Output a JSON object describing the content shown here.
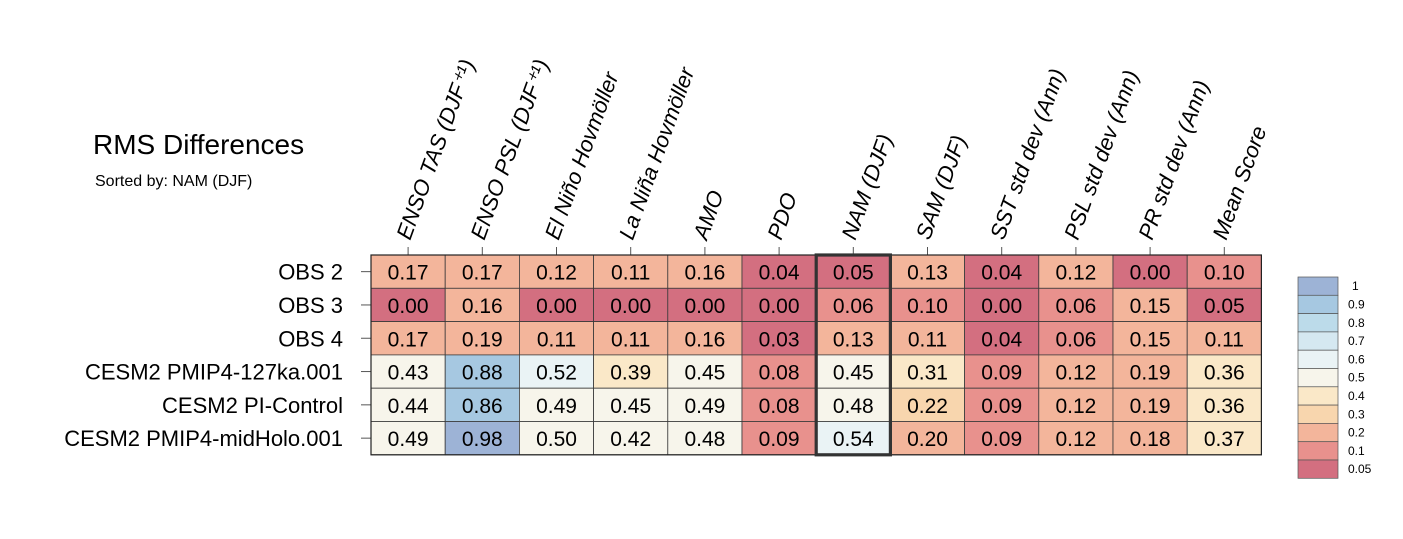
{
  "chart_data": {
    "type": "heatmap",
    "title": "RMS Differences",
    "subtitle": "Sorted by: NAM (DJF)",
    "highlighted_column": "NAM (DJF)",
    "columns": [
      "ENSO TAS (DJF⁺¹)",
      "ENSO PSL (DJF⁺¹)",
      "El Niño Hovmöller",
      "La Niña Hovmöller",
      "AMO",
      "PDO",
      "NAM (DJF)",
      "SAM (DJF)",
      "SST std dev (Ann)",
      "PSL std dev (Ann)",
      "PR std dev (Ann)",
      "Mean Score"
    ],
    "rows": [
      {
        "label": "OBS 2",
        "values": [
          0.17,
          0.17,
          0.12,
          0.11,
          0.16,
          0.04,
          0.05,
          0.13,
          0.04,
          0.12,
          0.0,
          0.1
        ],
        "text": [
          "0.17",
          "0.17",
          "0.12",
          "0.11",
          "0.16",
          "0.04",
          "0.05",
          "0.13",
          "0.04",
          "0.12",
          "0.00",
          "0.10"
        ]
      },
      {
        "label": "OBS 3",
        "values": [
          0.0,
          0.16,
          0.0,
          0.0,
          0.0,
          0.0,
          0.06,
          0.1,
          0.0,
          0.06,
          0.15,
          0.05
        ],
        "text": [
          "0.00",
          "0.16",
          "0.00",
          "0.00",
          "0.00",
          "0.00",
          "0.06",
          "0.10",
          "0.00",
          "0.06",
          "0.15",
          "0.05"
        ]
      },
      {
        "label": "OBS 4",
        "values": [
          0.17,
          0.19,
          0.11,
          0.11,
          0.16,
          0.03,
          0.13,
          0.11,
          0.04,
          0.06,
          0.15,
          0.11
        ],
        "text": [
          "0.17",
          "0.19",
          "0.11",
          "0.11",
          "0.16",
          "0.03",
          "0.13",
          "0.11",
          "0.04",
          "0.06",
          "0.15",
          "0.11"
        ]
      },
      {
        "label": "CESM2 PMIP4-127ka.001",
        "values": [
          0.43,
          0.88,
          0.52,
          0.39,
          0.45,
          0.08,
          0.45,
          0.31,
          0.09,
          0.12,
          0.19,
          0.36
        ],
        "text": [
          "0.43",
          "0.88",
          "0.52",
          "0.39",
          "0.45",
          "0.08",
          "0.45",
          "0.31",
          "0.09",
          "0.12",
          "0.19",
          "0.36"
        ]
      },
      {
        "label": "CESM2 PI-Control",
        "values": [
          0.44,
          0.86,
          0.49,
          0.45,
          0.49,
          0.08,
          0.48,
          0.22,
          0.09,
          0.12,
          0.19,
          0.36
        ],
        "text": [
          "0.44",
          "0.86",
          "0.49",
          "0.45",
          "0.49",
          "0.08",
          "0.48",
          "0.22",
          "0.09",
          "0.12",
          "0.19",
          "0.36"
        ]
      },
      {
        "label": "CESM2 PMIP4-midHolo.001",
        "values": [
          0.49,
          0.98,
          0.5,
          0.42,
          0.48,
          0.09,
          0.54,
          0.2,
          0.09,
          0.12,
          0.18,
          0.37
        ],
        "text": [
          "0.49",
          "0.98",
          "0.50",
          "0.42",
          "0.48",
          "0.09",
          "0.54",
          "0.20",
          "0.09",
          "0.12",
          "0.18",
          "0.37"
        ]
      }
    ],
    "legend": {
      "placement": "right",
      "levels": [
        1,
        0.9,
        0.8,
        0.7,
        0.6,
        0.5,
        0.4,
        0.3,
        0.2,
        0.1,
        0.05
      ],
      "labels": [
        "1",
        "0.9",
        "0.8",
        "0.7",
        "0.6",
        "0.5",
        "0.4",
        "0.3",
        "0.2",
        "0.1",
        "0.05"
      ],
      "colors": [
        "#9db3d6",
        "#a6c8e1",
        "#bcdbea",
        "#d5e8f1",
        "#eaf3f5",
        "#f7f5eb",
        "#fae8c8",
        "#f8d6ae",
        "#f3b59b",
        "#e8918d",
        "#d36f80"
      ]
    }
  }
}
